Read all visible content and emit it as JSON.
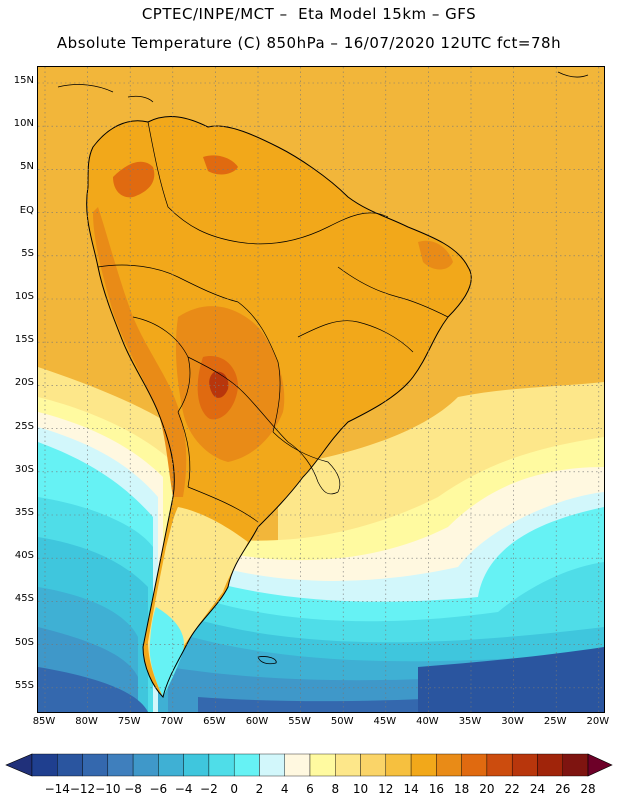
{
  "title": {
    "line1": "CPTEC/INPE/MCT –  Eta Model 15km – GFS",
    "line2": "Absolute Temperature (C) 850hPa – 16/07/2020 12UTC fct=78h"
  },
  "axes": {
    "lat_labels": [
      "15N",
      "10N",
      "5N",
      "EQ",
      "5S",
      "10S",
      "15S",
      "20S",
      "25S",
      "30S",
      "35S",
      "40S",
      "45S",
      "50S",
      "55S"
    ],
    "lon_labels": [
      "85W",
      "80W",
      "75W",
      "70W",
      "65W",
      "60W",
      "55W",
      "50W",
      "45W",
      "40W",
      "35W",
      "30W",
      "25W",
      "20W"
    ]
  },
  "colorbar": {
    "labels": [
      "−14",
      "−12",
      "−10",
      "−8",
      "−6",
      "−4",
      "−2",
      "0",
      "2",
      "4",
      "6",
      "8",
      "10",
      "12",
      "14",
      "16",
      "18",
      "20",
      "22",
      "24",
      "26",
      "28"
    ],
    "colors": [
      "#1f3f8f",
      "#2a559f",
      "#3468ae",
      "#3f7fbd",
      "#3f98c9",
      "#3fb0d4",
      "#3fc6dd",
      "#4fdde8",
      "#66f2f4",
      "#d2f7fb",
      "#fff8e0",
      "#fffaa0",
      "#fde78a",
      "#fad468",
      "#f6c03f",
      "#f2a81a",
      "#e98b17",
      "#e06a10",
      "#cc4c0e",
      "#b8360c",
      "#a0240a",
      "#7e1410",
      "#6d0028"
    ],
    "under_color": "#20307a",
    "over_color": "#6d0028"
  },
  "map": {
    "region": "South America",
    "field": "Temperature 850hPa",
    "ocean_colors": {
      "north_tropical": "#f2b63a",
      "south_cold": "#3fb0d4",
      "far_south": "#2a559f"
    }
  }
}
